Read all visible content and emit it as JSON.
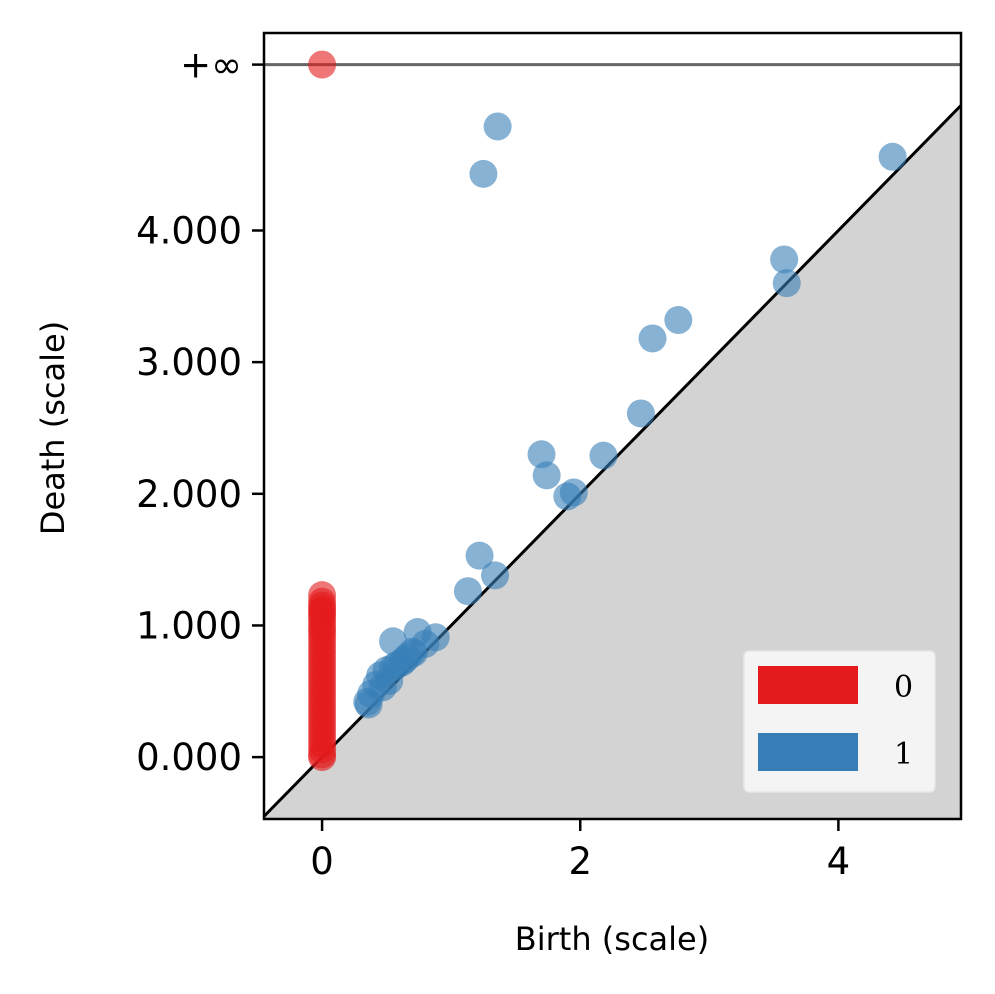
{
  "chart_data": {
    "type": "scatter",
    "title": "",
    "xlabel": "Birth (scale)",
    "ylabel": "Death (scale)",
    "xlim": [
      -0.45,
      4.95
    ],
    "ylim": [
      -0.47,
      5.5
    ],
    "infinity_value": 5.26,
    "infinity_label": "+∞",
    "x_ticks": [
      {
        "value": 0,
        "label": "0"
      },
      {
        "value": 2,
        "label": "2"
      },
      {
        "value": 4,
        "label": "4"
      }
    ],
    "y_ticks": [
      {
        "value": 0,
        "label": "0.000"
      },
      {
        "value": 1,
        "label": "1.000"
      },
      {
        "value": 2,
        "label": "2.000"
      },
      {
        "value": 3,
        "label": "3.000"
      },
      {
        "value": 4,
        "label": "4.000"
      }
    ],
    "legend": {
      "position": "lower-right",
      "entries": [
        "0",
        "1"
      ]
    },
    "colors": {
      "0": "#e41a1c",
      "1": "#377eb8",
      "diagonal_fill": "#d3d3d3",
      "infinity_line": "#666666"
    },
    "series": [
      {
        "name": "0",
        "points": [
          [
            0,
            5.26
          ],
          [
            0,
            1.23
          ],
          [
            0,
            1.18
          ],
          [
            0,
            1.15
          ],
          [
            0,
            1.12
          ],
          [
            0,
            1.1
          ],
          [
            0,
            1.07
          ],
          [
            0,
            1.04
          ],
          [
            0,
            1.0
          ],
          [
            0,
            0.97
          ],
          [
            0,
            0.94
          ],
          [
            0,
            0.9
          ],
          [
            0,
            0.86
          ],
          [
            0,
            0.82
          ],
          [
            0,
            0.78
          ],
          [
            0,
            0.74
          ],
          [
            0,
            0.7
          ],
          [
            0,
            0.66
          ],
          [
            0,
            0.62
          ],
          [
            0,
            0.58
          ],
          [
            0,
            0.54
          ],
          [
            0,
            0.5
          ],
          [
            0,
            0.46
          ],
          [
            0,
            0.42
          ],
          [
            0,
            0.38
          ],
          [
            0,
            0.34
          ],
          [
            0,
            0.3
          ],
          [
            0,
            0.26
          ],
          [
            0,
            0.22
          ],
          [
            0,
            0.18
          ],
          [
            0,
            0.14
          ],
          [
            0,
            0.1
          ],
          [
            0,
            0.06
          ],
          [
            0,
            0.02
          ],
          [
            0,
            0.0
          ]
        ]
      },
      {
        "name": "1",
        "points": [
          [
            1.36,
            4.79
          ],
          [
            1.25,
            4.43
          ],
          [
            4.42,
            4.56
          ],
          [
            3.58,
            3.78
          ],
          [
            3.6,
            3.6
          ],
          [
            2.76,
            3.32
          ],
          [
            2.56,
            3.18
          ],
          [
            2.47,
            2.61
          ],
          [
            1.7,
            2.3
          ],
          [
            1.74,
            2.14
          ],
          [
            2.18,
            2.29
          ],
          [
            1.9,
            1.98
          ],
          [
            1.95,
            2.01
          ],
          [
            1.22,
            1.53
          ],
          [
            1.13,
            1.26
          ],
          [
            1.34,
            1.38
          ],
          [
            0.55,
            0.88
          ],
          [
            0.74,
            0.95
          ],
          [
            0.88,
            0.91
          ],
          [
            0.8,
            0.86
          ],
          [
            0.7,
            0.8
          ],
          [
            0.62,
            0.72
          ],
          [
            0.66,
            0.76
          ],
          [
            0.55,
            0.68
          ],
          [
            0.5,
            0.66
          ],
          [
            0.45,
            0.62
          ],
          [
            0.52,
            0.58
          ],
          [
            0.42,
            0.55
          ],
          [
            0.38,
            0.48
          ],
          [
            0.35,
            0.42
          ],
          [
            0.36,
            0.4
          ],
          [
            0.58,
            0.7
          ],
          [
            0.64,
            0.74
          ],
          [
            0.71,
            0.79
          ],
          [
            0.47,
            0.53
          ]
        ]
      }
    ]
  }
}
